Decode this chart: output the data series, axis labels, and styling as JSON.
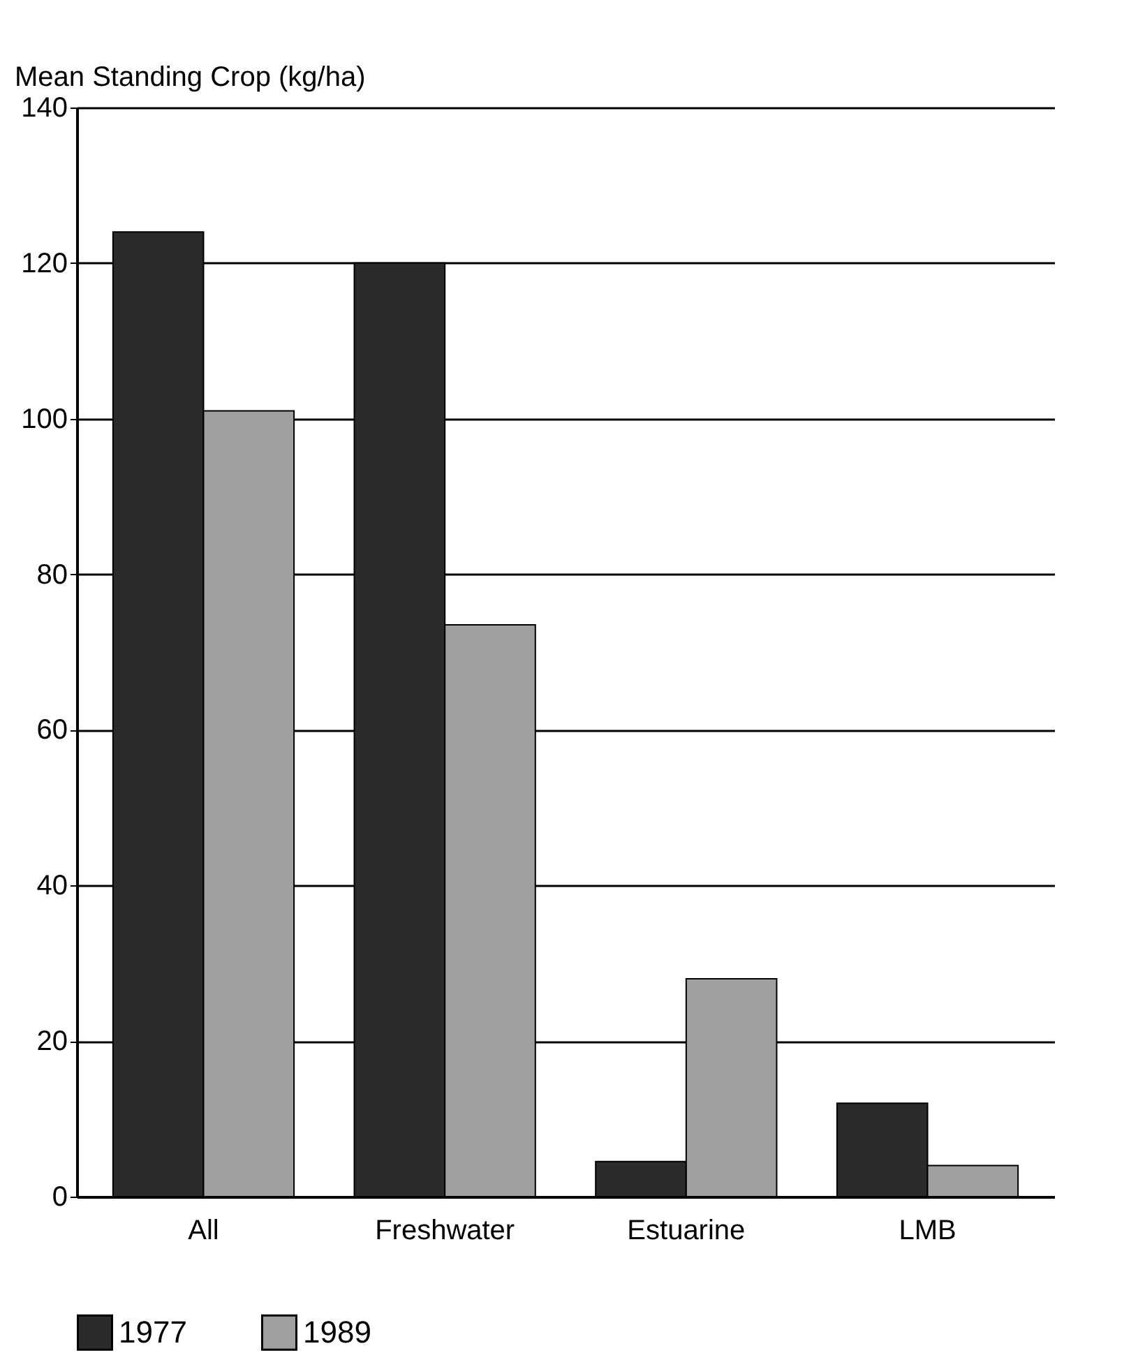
{
  "chart_data": {
    "type": "bar",
    "ylabel": "Mean Standing Crop (kg/ha)",
    "categories": [
      "All",
      "Freshwater",
      "Estuarine",
      "LMB"
    ],
    "series": [
      {
        "name": "1977",
        "color": "#2b2b2b",
        "values": [
          124,
          120,
          4.5,
          12
        ]
      },
      {
        "name": "1989",
        "color": "#a0a0a0",
        "values": [
          101,
          73.5,
          28,
          4
        ]
      }
    ],
    "ylim": [
      0,
      140
    ],
    "yticks": [
      0,
      20,
      40,
      60,
      80,
      100,
      120,
      140
    ],
    "grid": "y",
    "legend": "bottom"
  }
}
